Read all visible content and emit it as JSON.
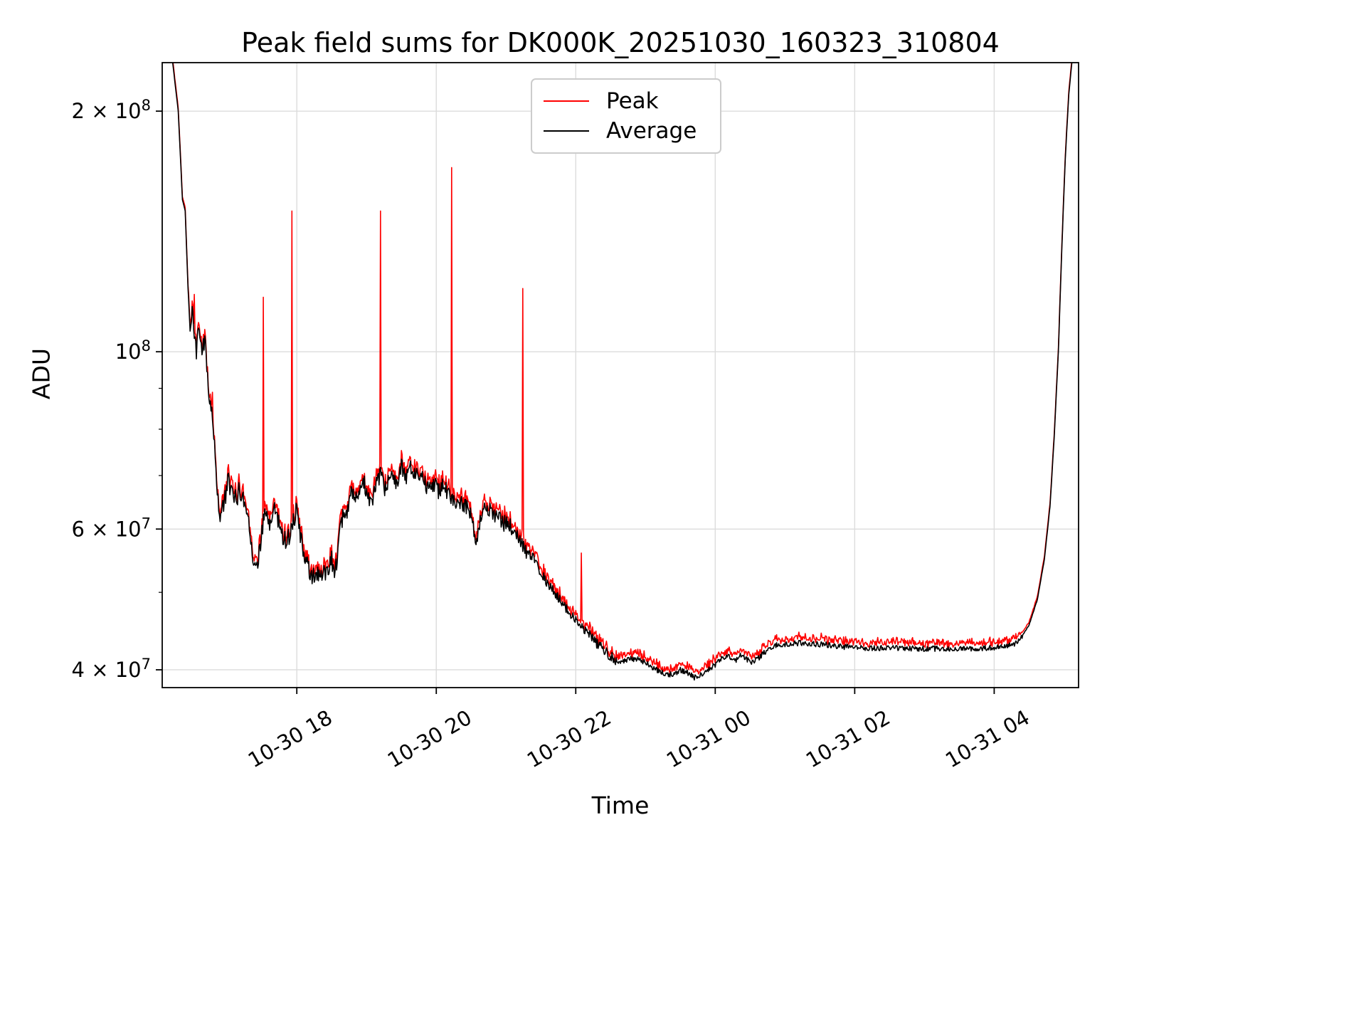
{
  "figure": {
    "title": "Peak field sums for DK000K_20251030_160323_310804",
    "xlabel": "Time",
    "ylabel": "ADU",
    "background": "#ffffff"
  },
  "legend": {
    "entries": [
      {
        "label": "Peak",
        "color": "#ff0000"
      },
      {
        "label": "Average",
        "color": "#000000"
      }
    ]
  },
  "chart_data": {
    "type": "line",
    "title": "Peak field sums for DK000K_20251030_160323_310804",
    "xlabel": "Time",
    "ylabel": "ADU",
    "units": "ADU",
    "yscale": "log",
    "ylim": [
      38000000,
      230000000
    ],
    "x_reference": "hours since 2025-10-30 16:00",
    "xlim_hours": [
      0.07,
      13.21
    ],
    "grid": true,
    "legend_position": "upper center",
    "x_ticks": [
      {
        "t": 2,
        "label": "10-30 18"
      },
      {
        "t": 4,
        "label": "10-30 20"
      },
      {
        "t": 6,
        "label": "10-30 22"
      },
      {
        "t": 8,
        "label": "10-31 00"
      },
      {
        "t": 10,
        "label": "10-31 02"
      },
      {
        "t": 12,
        "label": "10-31 04"
      }
    ],
    "y_ticks": [
      {
        "value": 40000000,
        "base": "4 × 10",
        "sup": "7"
      },
      {
        "value": 60000000,
        "base": "6 × 10",
        "sup": "7"
      },
      {
        "value": 100000000,
        "base": "10",
        "sup": "8"
      },
      {
        "value": 200000000,
        "base": "2 × 10",
        "sup": "8"
      }
    ],
    "y_minor_ticks": [
      50000000,
      70000000,
      80000000,
      90000000
    ],
    "sample_step_hours": 0.01,
    "peak_base_offset": 0.008,
    "average_noise_regions": [
      [
        0.07,
        0.45,
        0.0
      ],
      [
        0.45,
        0.85,
        0.025
      ],
      [
        0.85,
        2.6,
        0.03
      ],
      [
        2.6,
        5.3,
        0.025
      ],
      [
        5.3,
        6.6,
        0.015
      ],
      [
        6.6,
        12.4,
        0.008
      ],
      [
        12.4,
        13.21,
        0.001
      ]
    ],
    "peak_noise_regions": [
      [
        0.07,
        0.45,
        0.002
      ],
      [
        0.45,
        0.85,
        0.012
      ],
      [
        0.85,
        5.3,
        0.02
      ],
      [
        5.3,
        6.6,
        0.018
      ],
      [
        6.6,
        12.4,
        0.018
      ],
      [
        12.4,
        13.21,
        0.002
      ]
    ],
    "series": [
      {
        "name": "Peak",
        "color": "#ff0000",
        "derived_from": "Average",
        "spikes": [
          [
            0.53,
            118000000.0
          ],
          [
            0.79,
            89000000.0
          ],
          [
            1.52,
            117000000.0
          ],
          [
            1.93,
            150000000.0
          ],
          [
            3.2,
            150000000.0
          ],
          [
            4.22,
            170000000.0
          ],
          [
            5.24,
            120000000.0
          ],
          [
            6.08,
            56000000.0
          ]
        ]
      },
      {
        "name": "Average",
        "color": "#000000",
        "anchors": [
          [
            0.07,
            232000000.0
          ],
          [
            0.22,
            230000000.0
          ],
          [
            0.3,
            200000000.0
          ],
          [
            0.36,
            155000000.0
          ],
          [
            0.4,
            150000000.0
          ],
          [
            0.44,
            120000000.0
          ],
          [
            0.47,
            107000000.0
          ],
          [
            0.5,
            112000000.0
          ],
          [
            0.53,
            105000000.0
          ],
          [
            0.56,
            100000000.0
          ],
          [
            0.6,
            108000000.0
          ],
          [
            0.64,
            100000000.0
          ],
          [
            0.68,
            104000000.0
          ],
          [
            0.71,
            96000000.0
          ],
          [
            0.74,
            88000000.0
          ],
          [
            0.78,
            85000000.0
          ],
          [
            0.82,
            76000000.0
          ],
          [
            0.86,
            67000000.0
          ],
          [
            0.9,
            62000000.0
          ],
          [
            0.94,
            64000000.0
          ],
          [
            0.98,
            66000000.0
          ],
          [
            1.02,
            69000000.0
          ],
          [
            1.06,
            67000000.0
          ],
          [
            1.1,
            65000000.0
          ],
          [
            1.14,
            66000000.0
          ],
          [
            1.18,
            67000000.0
          ],
          [
            1.22,
            66000000.0
          ],
          [
            1.27,
            64000000.0
          ],
          [
            1.32,
            61000000.0
          ],
          [
            1.36,
            57000000.0
          ],
          [
            1.4,
            53000000.0
          ],
          [
            1.44,
            55000000.0
          ],
          [
            1.48,
            58000000.0
          ],
          [
            1.52,
            61000000.0
          ],
          [
            1.56,
            63000000.0
          ],
          [
            1.6,
            60000000.0
          ],
          [
            1.64,
            62000000.0
          ],
          [
            1.68,
            64000000.0
          ],
          [
            1.72,
            62000000.0
          ],
          [
            1.76,
            60000000.0
          ],
          [
            1.8,
            59000000.0
          ],
          [
            1.85,
            58000000.0
          ],
          [
            1.9,
            59000000.0
          ],
          [
            1.95,
            62000000.0
          ],
          [
            2.0,
            63000000.0
          ],
          [
            2.05,
            59000000.0
          ],
          [
            2.1,
            56000000.0
          ],
          [
            2.15,
            54000000.0
          ],
          [
            2.2,
            52000000.0
          ],
          [
            2.28,
            53000000.0
          ],
          [
            2.36,
            52000000.0
          ],
          [
            2.44,
            54000000.0
          ],
          [
            2.5,
            55000000.0
          ],
          [
            2.55,
            53000000.0
          ],
          [
            2.6,
            58000000.0
          ],
          [
            2.66,
            62000000.0
          ],
          [
            2.72,
            63000000.0
          ],
          [
            2.78,
            67000000.0
          ],
          [
            2.84,
            65000000.0
          ],
          [
            2.9,
            66000000.0
          ],
          [
            2.96,
            69000000.0
          ],
          [
            3.02,
            66000000.0
          ],
          [
            3.08,
            65000000.0
          ],
          [
            3.14,
            68000000.0
          ],
          [
            3.2,
            70000000.0
          ],
          [
            3.26,
            67000000.0
          ],
          [
            3.32,
            69000000.0
          ],
          [
            3.38,
            71000000.0
          ],
          [
            3.44,
            68000000.0
          ],
          [
            3.5,
            72000000.0
          ],
          [
            3.56,
            69000000.0
          ],
          [
            3.62,
            72000000.0
          ],
          [
            3.68,
            70000000.0
          ],
          [
            3.74,
            71000000.0
          ],
          [
            3.8,
            70000000.0
          ],
          [
            3.86,
            68000000.0
          ],
          [
            3.92,
            69000000.0
          ],
          [
            3.98,
            68000000.0
          ],
          [
            4.04,
            67000000.0
          ],
          [
            4.1,
            69000000.0
          ],
          [
            4.16,
            66000000.0
          ],
          [
            4.22,
            66000000.0
          ],
          [
            4.28,
            65000000.0
          ],
          [
            4.34,
            65000000.0
          ],
          [
            4.4,
            64000000.0
          ],
          [
            4.46,
            64000000.0
          ],
          [
            4.52,
            62000000.0
          ],
          [
            4.56,
            57000000.0
          ],
          [
            4.6,
            59000000.0
          ],
          [
            4.66,
            63000000.0
          ],
          [
            4.72,
            64000000.0
          ],
          [
            4.78,
            63000000.0
          ],
          [
            4.84,
            62000000.0
          ],
          [
            4.9,
            62000000.0
          ],
          [
            4.96,
            61000000.0
          ],
          [
            5.02,
            61000000.0
          ],
          [
            5.08,
            60000000.0
          ],
          [
            5.14,
            59000000.0
          ],
          [
            5.2,
            58000000.0
          ],
          [
            5.3,
            56000000.0
          ],
          [
            5.4,
            55000000.0
          ],
          [
            5.5,
            53000000.0
          ],
          [
            5.6,
            51000000.0
          ],
          [
            5.7,
            50000000.0
          ],
          [
            5.8,
            48500000.0
          ],
          [
            5.9,
            47200000.0
          ],
          [
            6.0,
            46200000.0
          ],
          [
            6.1,
            45200000.0
          ],
          [
            6.2,
            44200000.0
          ],
          [
            6.3,
            43200000.0
          ],
          [
            6.4,
            42400000.0
          ],
          [
            6.5,
            41600000.0
          ],
          [
            6.6,
            41000000.0
          ],
          [
            6.7,
            41000000.0
          ],
          [
            6.8,
            41300000.0
          ],
          [
            6.9,
            41200000.0
          ],
          [
            7.0,
            40800000.0
          ],
          [
            7.1,
            40300000.0
          ],
          [
            7.2,
            39800000.0
          ],
          [
            7.3,
            39400000.0
          ],
          [
            7.4,
            39500000.0
          ],
          [
            7.5,
            40000000.0
          ],
          [
            7.6,
            39700000.0
          ],
          [
            7.7,
            39100000.0
          ],
          [
            7.8,
            39500000.0
          ],
          [
            7.9,
            40000000.0
          ],
          [
            8.0,
            40600000.0
          ],
          [
            8.1,
            41400000.0
          ],
          [
            8.2,
            41700000.0
          ],
          [
            8.28,
            40900000.0
          ],
          [
            8.36,
            41700000.0
          ],
          [
            8.44,
            41300000.0
          ],
          [
            8.52,
            40900000.0
          ],
          [
            8.6,
            41200000.0
          ],
          [
            8.7,
            42000000.0
          ],
          [
            8.8,
            42700000.0
          ],
          [
            8.9,
            43000000.0
          ],
          [
            9.0,
            43000000.0
          ],
          [
            9.2,
            43200000.0
          ],
          [
            9.4,
            43100000.0
          ],
          [
            9.6,
            43000000.0
          ],
          [
            9.8,
            42800000.0
          ],
          [
            10.0,
            42600000.0
          ],
          [
            10.5,
            42600000.0
          ],
          [
            11.0,
            42500000.0
          ],
          [
            11.5,
            42500000.0
          ],
          [
            12.0,
            42600000.0
          ],
          [
            12.2,
            42800000.0
          ],
          [
            12.35,
            43400000.0
          ],
          [
            12.5,
            45500000.0
          ],
          [
            12.62,
            49000000.0
          ],
          [
            12.72,
            55000000.0
          ],
          [
            12.8,
            64000000.0
          ],
          [
            12.86,
            78000000.0
          ],
          [
            12.92,
            100000000.0
          ],
          [
            12.97,
            135000000.0
          ],
          [
            13.02,
            175000000.0
          ],
          [
            13.07,
            210000000.0
          ],
          [
            13.12,
            233000000.0
          ],
          [
            13.21,
            240000000.0
          ]
        ]
      }
    ]
  }
}
